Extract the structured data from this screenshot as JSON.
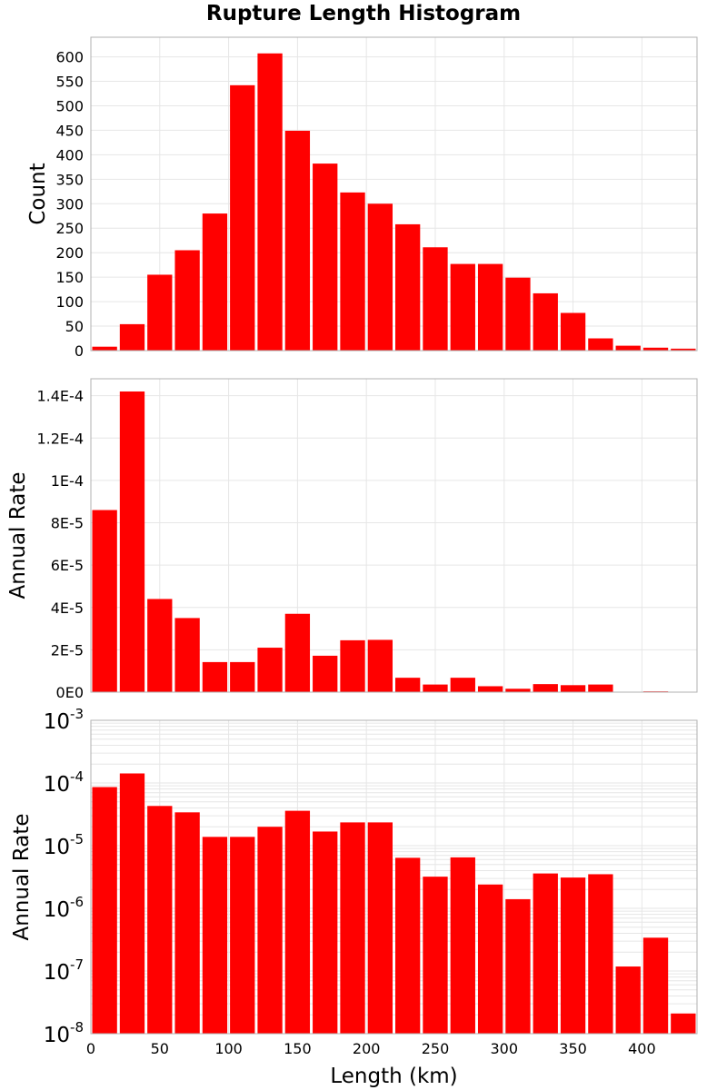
{
  "figure_title": "Rupture Length Histogram",
  "colors": {
    "bar": "#ff0000",
    "grid": "#e6e6e6",
    "frame": "#b0b0b0"
  },
  "chart_data": [
    {
      "type": "bar",
      "ylabel": "Count",
      "yscale": "linear",
      "xlim": [
        0,
        440
      ],
      "ylim": [
        0,
        640
      ],
      "yticks": [
        0,
        50,
        100,
        150,
        200,
        250,
        300,
        350,
        400,
        450,
        500,
        550,
        600
      ],
      "ytick_labels": [
        "0",
        "50",
        "100",
        "150",
        "200",
        "250",
        "300",
        "350",
        "400",
        "450",
        "500",
        "550",
        "600"
      ],
      "bin_width": 20,
      "x": [
        10,
        30,
        50,
        70,
        90,
        110,
        130,
        150,
        170,
        190,
        210,
        230,
        250,
        270,
        290,
        310,
        330,
        350,
        370,
        390,
        410,
        430
      ],
      "values": [
        8,
        54,
        155,
        205,
        280,
        542,
        607,
        449,
        382,
        323,
        300,
        258,
        211,
        177,
        177,
        149,
        117,
        77,
        25,
        10,
        6,
        4
      ],
      "grid": true
    },
    {
      "type": "bar",
      "ylabel": "Annual Rate",
      "yscale": "linear",
      "xlim": [
        0,
        440
      ],
      "ylim": [
        0,
        0.000148
      ],
      "yticks": [
        0,
        2e-05,
        4e-05,
        6e-05,
        8e-05,
        0.0001,
        0.00012,
        0.00014
      ],
      "ytick_labels": [
        "0E0",
        "2E-5",
        "4E-5",
        "6E-5",
        "8E-5",
        "1E-4",
        "1.2E-4",
        "1.4E-4"
      ],
      "bin_width": 20,
      "x": [
        10,
        30,
        50,
        70,
        90,
        110,
        130,
        150,
        170,
        190,
        210,
        230,
        250,
        270,
        290,
        310,
        330,
        350,
        370,
        390,
        410,
        430
      ],
      "values": [
        8.6e-05,
        0.000142,
        4.4e-05,
        3.5e-05,
        1.42e-05,
        1.42e-05,
        2.1e-05,
        3.7e-05,
        1.72e-05,
        2.45e-05,
        2.47e-05,
        6.8e-06,
        3.6e-06,
        6.8e-06,
        2.8e-06,
        1.6e-06,
        3.8e-06,
        3.3e-06,
        3.6e-06,
        1.3e-07,
        3.6e-07,
        2.5e-08
      ],
      "grid": true
    },
    {
      "type": "bar",
      "ylabel": "Annual Rate",
      "xlabel": "Length (km)",
      "yscale": "log",
      "xlim": [
        0,
        440
      ],
      "ylim": [
        1e-08,
        0.001
      ],
      "yticks": [
        1e-08,
        1e-07,
        1e-06,
        1e-05,
        0.0001,
        0.001
      ],
      "ytick_labels": [
        {
          "base": "10",
          "exp": "-8"
        },
        {
          "base": "10",
          "exp": "-7"
        },
        {
          "base": "10",
          "exp": "-6"
        },
        {
          "base": "10",
          "exp": "-5"
        },
        {
          "base": "10",
          "exp": "-4"
        },
        {
          "base": "10",
          "exp": "-3"
        }
      ],
      "xticks": [
        0,
        50,
        100,
        150,
        200,
        250,
        300,
        350,
        400
      ],
      "xtick_labels": [
        "0",
        "50",
        "100",
        "150",
        "200",
        "250",
        "300",
        "350",
        "400"
      ],
      "bin_width": 20,
      "x": [
        10,
        30,
        50,
        70,
        90,
        110,
        130,
        150,
        170,
        190,
        210,
        230,
        250,
        270,
        290,
        310,
        330,
        350,
        370,
        390,
        410,
        430
      ],
      "values": [
        8.6e-05,
        0.000142,
        4.3e-05,
        3.4e-05,
        1.38e-05,
        1.38e-05,
        2e-05,
        3.6e-05,
        1.68e-05,
        2.35e-05,
        2.35e-05,
        6.4e-06,
        3.2e-06,
        6.5e-06,
        2.4e-06,
        1.4e-06,
        3.6e-06,
        3.1e-06,
        3.5e-06,
        1.18e-07,
        3.4e-07,
        2.1e-08
      ],
      "grid": true
    }
  ]
}
